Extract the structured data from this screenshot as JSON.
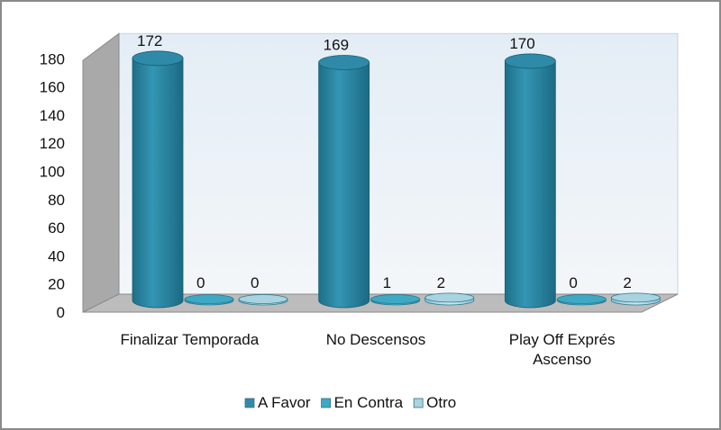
{
  "chart_data": {
    "type": "bar",
    "style": "3d-cylinder",
    "categories": [
      [
        "Finalizar Temporada"
      ],
      [
        "No Descensos"
      ],
      [
        "Play Off Exprés",
        "Ascenso"
      ]
    ],
    "series": [
      {
        "name": "A Favor",
        "values": [
          172,
          169,
          170
        ],
        "color": "#2e8aa8"
      },
      {
        "name": "En Contra",
        "values": [
          0,
          1,
          0
        ],
        "color": "#3fa8c4"
      },
      {
        "name": "Otro",
        "values": [
          0,
          2,
          2
        ],
        "color": "#a9d3e0"
      }
    ],
    "yticks": [
      0,
      20,
      40,
      60,
      80,
      100,
      120,
      140,
      160,
      180
    ],
    "ylim": [
      0,
      180
    ],
    "grid": false,
    "legend_position": "bottom",
    "colors": {
      "back_wall": "#e8eff6",
      "side_wall": "#a9a9a9",
      "floor": "#bcbcbc"
    }
  }
}
